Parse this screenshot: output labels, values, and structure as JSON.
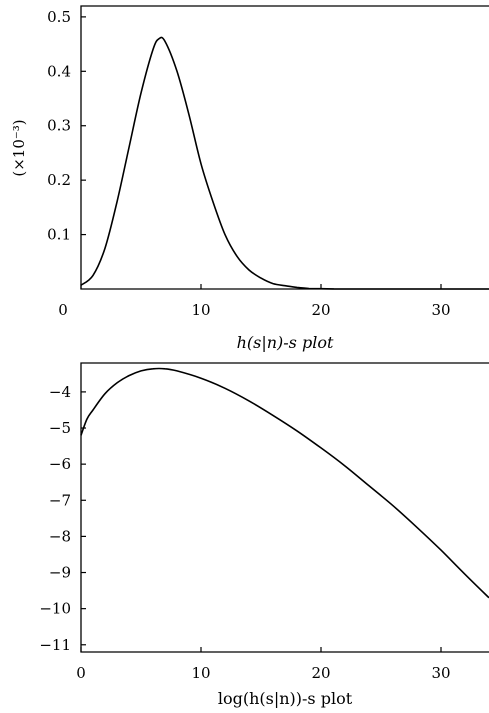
{
  "chart_data": [
    {
      "type": "line",
      "title": "",
      "xlabel": "h(s|n)-s plot",
      "ylabel": "(×10⁻³)",
      "xlim": [
        0,
        34
      ],
      "ylim": [
        0,
        0.52
      ],
      "xticks": [
        "0",
        "10",
        "20",
        "30"
      ],
      "xtick_values": [
        0,
        10,
        20,
        30
      ],
      "yticks": [
        "0.1",
        "0.2",
        "0.3",
        "0.4",
        "0.5"
      ],
      "ytick_values": [
        0.1,
        0.2,
        0.3,
        0.4,
        0.5
      ],
      "series": [
        {
          "x": [
            0,
            1,
            2,
            3,
            4,
            5,
            6,
            6.5,
            7,
            8,
            9,
            10,
            11,
            12,
            13,
            14,
            15,
            16,
            17,
            18,
            19,
            20,
            21,
            22,
            34
          ],
          "y": [
            0.007,
            0.025,
            0.075,
            0.16,
            0.26,
            0.36,
            0.44,
            0.46,
            0.455,
            0.4,
            0.32,
            0.23,
            0.16,
            0.1,
            0.06,
            0.035,
            0.02,
            0.01,
            0.006,
            0.003,
            0.001,
            0.0005,
            0.0002,
            0,
            0
          ]
        }
      ]
    },
    {
      "type": "line",
      "title": "",
      "xlabel": "log(h(s|n))-s plot",
      "ylabel": "",
      "xlim": [
        0,
        34
      ],
      "ylim": [
        -11.2,
        -3.2
      ],
      "xticks": [
        "0",
        "10",
        "20",
        "30"
      ],
      "xtick_values": [
        0,
        10,
        20,
        30
      ],
      "yticks": [
        "−4",
        "−5",
        "−6",
        "−7",
        "−8",
        "−9",
        "−10",
        "−11"
      ],
      "ytick_values": [
        -4,
        -5,
        -6,
        -7,
        -8,
        -9,
        -10,
        -11
      ],
      "series": [
        {
          "x": [
            0,
            0.5,
            1,
            2,
            3,
            4,
            5,
            6,
            7,
            8,
            10,
            12,
            14,
            16,
            18,
            20,
            22,
            24,
            26,
            28,
            30,
            32,
            34
          ],
          "y": [
            -5.2,
            -4.75,
            -4.5,
            -4.05,
            -3.75,
            -3.55,
            -3.42,
            -3.36,
            -3.36,
            -3.42,
            -3.62,
            -3.9,
            -4.25,
            -4.65,
            -5.08,
            -5.55,
            -6.05,
            -6.6,
            -7.15,
            -7.75,
            -8.38,
            -9.05,
            -9.7
          ]
        }
      ]
    }
  ]
}
